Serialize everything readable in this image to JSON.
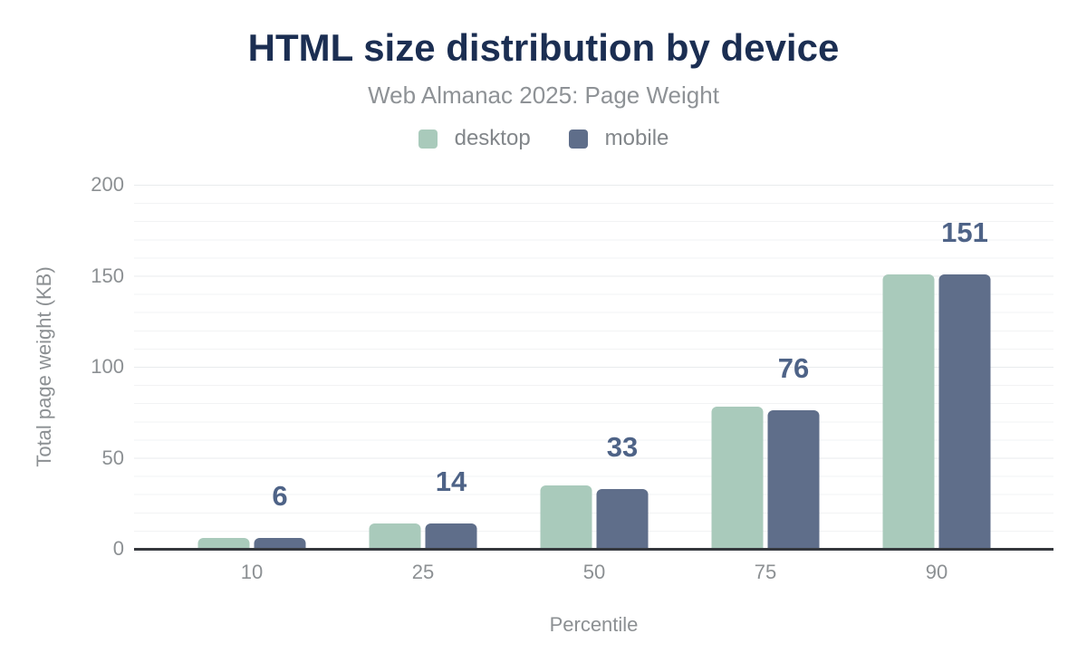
{
  "title": "HTML size distribution by device",
  "subtitle": "Web Almanac 2025: Page Weight",
  "axis": {
    "x_label": "Percentile",
    "y_label": "Total page weight (KB)"
  },
  "chart_data": {
    "type": "bar",
    "title": "HTML size distribution by device",
    "subtitle": "Web Almanac 2025: Page Weight",
    "categories": [
      "10",
      "25",
      "50",
      "75",
      "90"
    ],
    "series": [
      {
        "name": "desktop",
        "color": "#a9cabb",
        "values": [
          6,
          14,
          35,
          78,
          151
        ]
      },
      {
        "name": "mobile",
        "color": "#5f6e8a",
        "values": [
          6,
          14,
          33,
          76,
          151
        ]
      }
    ],
    "data_labels": {
      "series": "mobile",
      "values": [
        "6",
        "14",
        "33",
        "76",
        "151"
      ]
    },
    "xlabel": "Percentile",
    "ylabel": "Total page weight (KB)",
    "ylim": [
      0,
      200
    ],
    "yticks": [
      0,
      50,
      100,
      150,
      200
    ],
    "grid": "horizontal, minor every 10 KB, major every 50 KB",
    "legend_position": "top-center"
  },
  "colors": {
    "background": "#ffffff",
    "title": "#1b2e52",
    "subtitle": "#8e9296",
    "legend_text": "#82868a",
    "axis_text": "#8c9093",
    "value_label": "#4e6387",
    "axis_line": "#35383d",
    "gridline_minor": "#f2f3f4",
    "gridline_major": "#e9ebed",
    "desktop": "#a9cabb",
    "mobile": "#5f6e8a"
  }
}
